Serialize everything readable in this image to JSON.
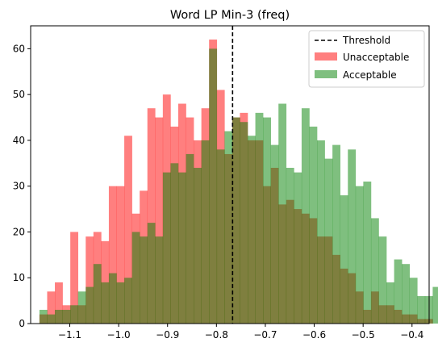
{
  "chart_data": {
    "type": "bar",
    "title": "Word LP Min-3 (freq)",
    "xlabel": "",
    "ylabel": "",
    "xlim": [
      -1.18,
      -0.365
    ],
    "ylim": [
      0,
      65
    ],
    "xticks": [
      -1.1,
      -1.0,
      -0.9,
      -0.8,
      -0.7,
      -0.6,
      -0.5,
      -0.4
    ],
    "xtick_labels": [
      "−1.1",
      "−1.0",
      "−0.9",
      "−0.8",
      "−0.7",
      "−0.6",
      "−0.5",
      "−0.4"
    ],
    "yticks": [
      0,
      10,
      20,
      30,
      40,
      50,
      60
    ],
    "ytick_labels": [
      "0",
      "10",
      "20",
      "30",
      "40",
      "50",
      "60"
    ],
    "bin_start": -1.162,
    "bin_width": 0.01577,
    "threshold": -0.767,
    "legend_position": "top-right",
    "series": [
      {
        "name": "Unacceptable",
        "color": "#ff0000",
        "alpha": 0.5,
        "values": [
          2,
          7,
          9,
          4,
          20,
          4,
          19,
          20,
          18,
          30,
          30,
          41,
          24,
          29,
          47,
          45,
          50,
          43,
          48,
          45,
          40,
          47,
          62,
          51,
          37,
          45,
          46,
          40,
          40,
          30,
          34,
          26,
          27,
          25,
          24,
          23,
          19,
          19,
          15,
          12,
          11,
          7,
          3,
          7,
          4,
          4,
          3,
          2,
          2,
          1,
          1
        ]
      },
      {
        "name": "Acceptable",
        "color": "#008000",
        "alpha": 0.5,
        "values": [
          3,
          2,
          3,
          3,
          4,
          7,
          8,
          13,
          9,
          11,
          9,
          10,
          20,
          19,
          22,
          19,
          33,
          35,
          33,
          37,
          34,
          40,
          60,
          38,
          42,
          45,
          44,
          41,
          46,
          45,
          39,
          48,
          34,
          33,
          47,
          43,
          40,
          36,
          39,
          28,
          38,
          30,
          31,
          23,
          19,
          9,
          14,
          13,
          10,
          6,
          6,
          8
        ]
      }
    ],
    "threshold_series": {
      "name": "Threshold",
      "color": "#000000",
      "style": "dashed"
    }
  }
}
